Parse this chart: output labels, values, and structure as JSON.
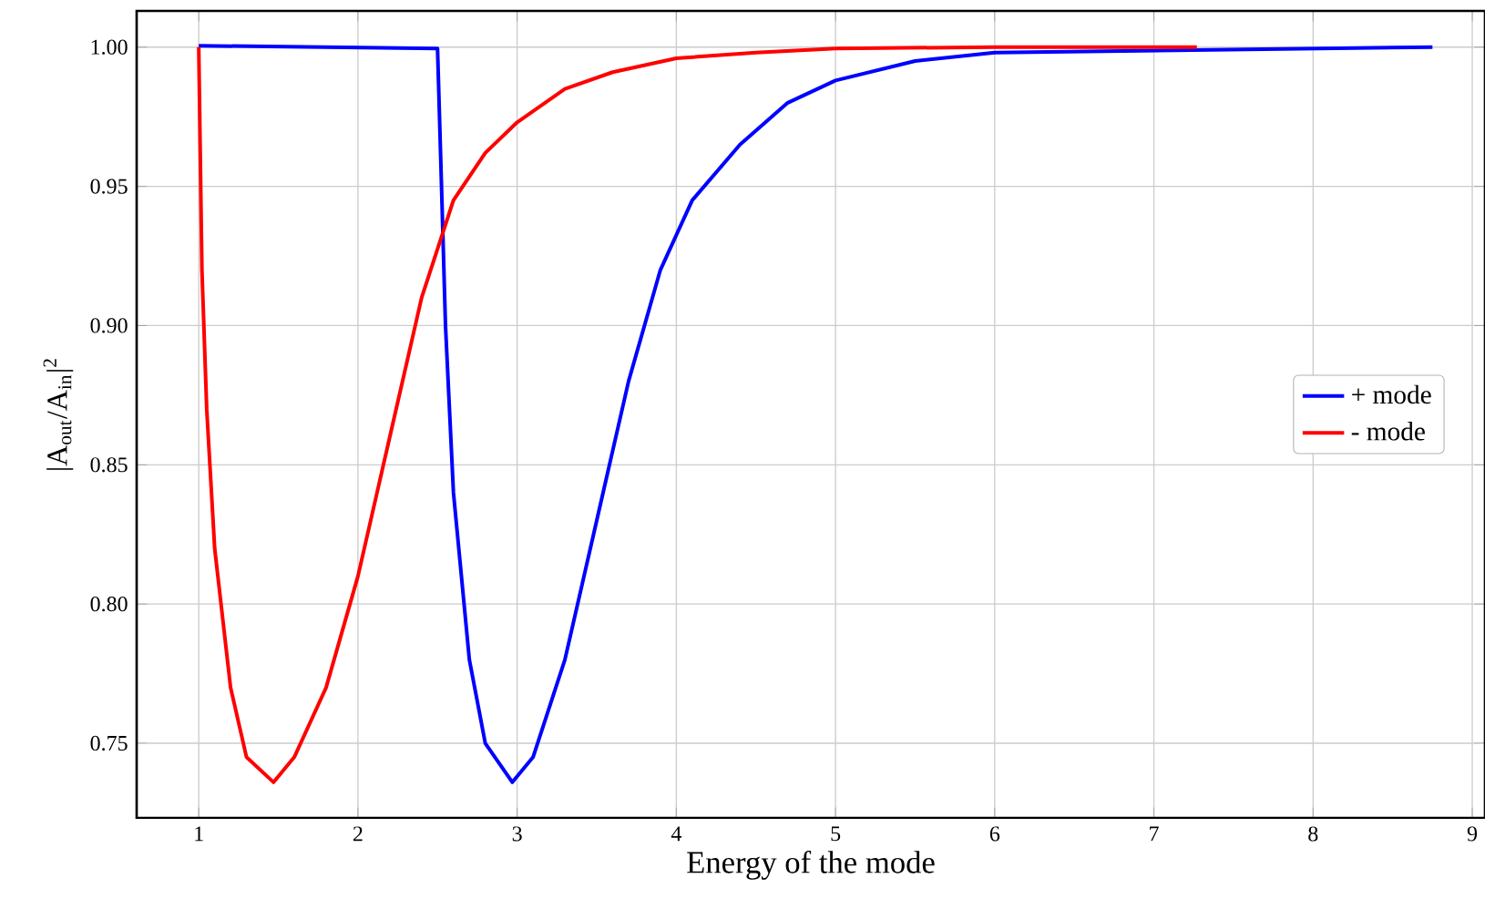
{
  "chart_data": {
    "type": "line",
    "xlabel": "Energy of the mode",
    "ylabel": "|A$_{out}$/A$_{in}$|$^{2}$",
    "xlim": [
      0.61,
      9.08
    ],
    "ylim": [
      0.7232,
      1.013
    ],
    "xticks": [
      1,
      2,
      3,
      4,
      5,
      6,
      7,
      8,
      9
    ],
    "yticks": [
      {
        "value": 0.75,
        "label": "0.75"
      },
      {
        "value": 0.8,
        "label": "0.80"
      },
      {
        "value": 0.85,
        "label": "0.85"
      },
      {
        "value": 0.9,
        "label": "0.90"
      },
      {
        "value": 0.95,
        "label": "0.95"
      },
      {
        "value": 1.0,
        "label": "1.00"
      }
    ],
    "grid": true,
    "legend": "right",
    "series": [
      {
        "name": "+ mode",
        "color": "#0000ff",
        "x": [
          1,
          2.5,
          2.52,
          2.55,
          2.6,
          2.7,
          2.8,
          2.97,
          3.1,
          3.3,
          3.5,
          3.7,
          3.9,
          4.1,
          4.4,
          4.7,
          5.0,
          5.5,
          6.0,
          7.0,
          8.75
        ],
        "values": [
          1.0005,
          0.9995,
          0.96,
          0.9,
          0.84,
          0.78,
          0.75,
          0.736,
          0.745,
          0.78,
          0.83,
          0.88,
          0.92,
          0.945,
          0.965,
          0.98,
          0.988,
          0.995,
          0.998,
          null,
          1.0
        ]
      },
      {
        "name": "- mode",
        "color": "#ff0000",
        "x": [
          1,
          1.02,
          1.05,
          1.1,
          1.2,
          1.3,
          1.47,
          1.6,
          1.8,
          2.0,
          2.2,
          2.4,
          2.6,
          2.8,
          3.0,
          3.3,
          3.6,
          4.0,
          4.5,
          5.0,
          6.0,
          7.27
        ],
        "values": [
          1.0,
          0.92,
          0.87,
          0.82,
          0.77,
          0.745,
          0.736,
          0.745,
          0.77,
          0.81,
          0.86,
          0.91,
          0.945,
          0.962,
          0.973,
          0.985,
          0.991,
          0.996,
          0.998,
          0.9995,
          1.0,
          1.0
        ]
      }
    ]
  }
}
